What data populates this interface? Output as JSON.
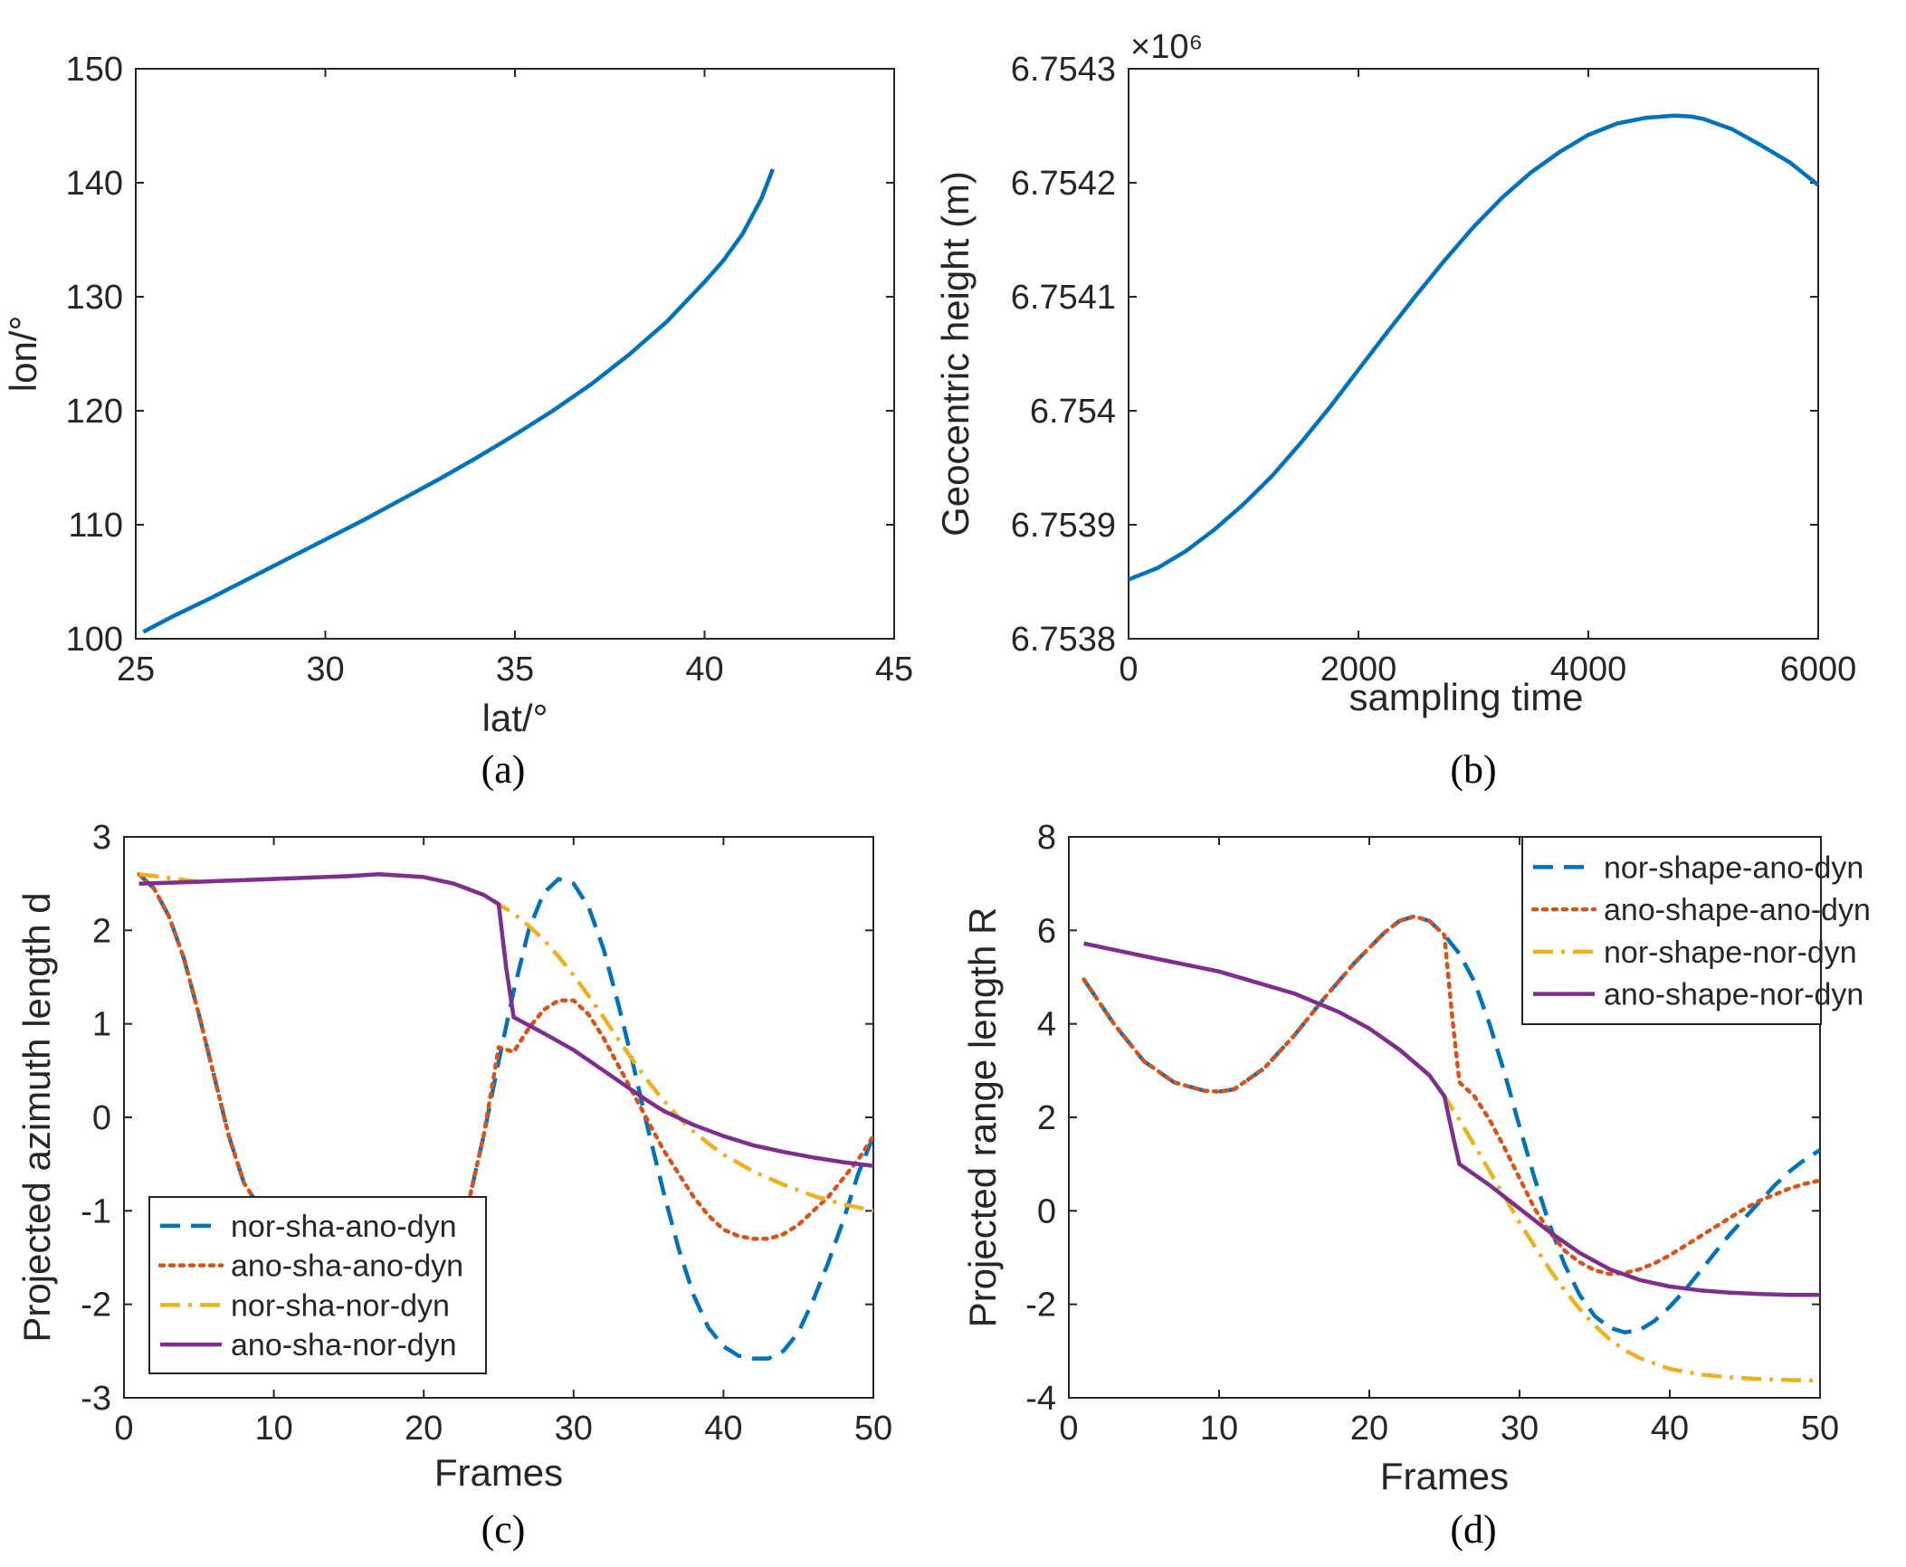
{
  "chart_data": [
    {
      "type": "line",
      "caption": "(a)",
      "xlabel": "lat/°",
      "ylabel": "lon/°",
      "xlim": [
        25,
        45
      ],
      "ylim": [
        100,
        150
      ],
      "xticks": [
        25,
        30,
        35,
        40,
        45
      ],
      "yticks": [
        100,
        110,
        120,
        130,
        140,
        150
      ],
      "series": [
        {
          "color": "#0072BD",
          "dash": "solid",
          "x": [
            25.2,
            26,
            27,
            28,
            29,
            30,
            31,
            32,
            33,
            34,
            35,
            36,
            37,
            38,
            39,
            40,
            40.5,
            41,
            41.5,
            41.8
          ],
          "y": [
            100.6,
            102.0,
            103.6,
            105.3,
            107.0,
            108.7,
            110.4,
            112.2,
            114.0,
            115.9,
            117.9,
            120.0,
            122.3,
            124.9,
            127.8,
            131.3,
            133.2,
            135.5,
            138.6,
            141.2
          ]
        }
      ]
    },
    {
      "type": "line",
      "caption": "(b)",
      "xlabel": "sampling time",
      "ylabel": "Geocentric height (m)",
      "exponent": "×10⁶",
      "xlim": [
        0,
        6000
      ],
      "ylim": [
        6.7538,
        6.7543
      ],
      "xticks": [
        0,
        2000,
        4000,
        6000
      ],
      "yticks": [
        6.7538,
        6.7539,
        6.754,
        6.7541,
        6.7542,
        6.7543
      ],
      "ytick_labels": [
        "6.7538",
        "6.7539",
        "6.754",
        "6.7541",
        "6.7542",
        "6.7543"
      ],
      "series": [
        {
          "color": "#0072BD",
          "dash": "solid",
          "x": [
            0,
            250,
            500,
            750,
            1000,
            1250,
            1500,
            1750,
            2000,
            2250,
            2500,
            2750,
            3000,
            3250,
            3500,
            3750,
            4000,
            4250,
            4500,
            4750,
            4900,
            5000,
            5250,
            5500,
            5750,
            6000
          ],
          "y": [
            6.753852,
            6.753862,
            6.753877,
            6.753896,
            6.753918,
            6.753943,
            6.753972,
            6.754003,
            6.754036,
            6.754069,
            6.754101,
            6.754132,
            6.754161,
            6.754187,
            6.754209,
            6.754227,
            6.754242,
            6.754252,
            6.754257,
            6.754259,
            6.754258,
            6.754256,
            6.754247,
            6.754233,
            6.754218,
            6.754198
          ]
        }
      ]
    },
    {
      "type": "line",
      "caption": "(c)",
      "xlabel": "Frames",
      "ylabel": "Projected azimuth length d",
      "xlim": [
        0,
        50
      ],
      "ylim": [
        -3,
        3
      ],
      "xticks": [
        0,
        10,
        20,
        30,
        40,
        50
      ],
      "yticks": [
        -3,
        -2,
        -1,
        0,
        1,
        2,
        3
      ],
      "legend_position": "bottom-left",
      "series": [
        {
          "name": "nor-sha-ano-dyn",
          "color": "#0072BD",
          "dash": "dashed",
          "x": [
            1,
            2,
            3,
            4,
            5,
            6,
            7,
            8,
            9,
            10,
            11,
            22,
            23,
            24,
            25,
            26,
            27,
            28,
            29,
            30,
            31,
            32,
            33,
            34,
            35,
            36,
            37,
            38,
            39,
            40,
            41,
            42,
            43,
            44,
            45,
            46,
            47,
            48,
            49,
            50
          ],
          "y": [
            2.6,
            2.45,
            2.15,
            1.7,
            1.1,
            0.45,
            -0.2,
            -0.7,
            -0.95,
            -1.0,
            -1.0,
            -1.0,
            -0.9,
            -0.2,
            0.6,
            1.35,
            2.0,
            2.4,
            2.55,
            2.5,
            2.25,
            1.8,
            1.2,
            0.55,
            -0.15,
            -0.8,
            -1.4,
            -1.9,
            -2.25,
            -2.45,
            -2.55,
            -2.58,
            -2.58,
            -2.5,
            -2.3,
            -1.95,
            -1.55,
            -1.1,
            -0.6,
            -0.2
          ]
        },
        {
          "name": "ano-sha-ano-dyn",
          "color": "#D95319",
          "dash": "dotted",
          "x": [
            1,
            2,
            3,
            4,
            5,
            6,
            7,
            8,
            9,
            10,
            11,
            22,
            23,
            24,
            25,
            26,
            27,
            28,
            29,
            30,
            31,
            32,
            33,
            34,
            35,
            36,
            37,
            38,
            39,
            40,
            41,
            42,
            43,
            44,
            45,
            46,
            47,
            48,
            49,
            50
          ],
          "y": [
            2.6,
            2.45,
            2.15,
            1.7,
            1.1,
            0.45,
            -0.2,
            -0.7,
            -0.95,
            -1.0,
            -1.0,
            -1.0,
            -0.9,
            -0.2,
            0.75,
            0.7,
            0.95,
            1.15,
            1.25,
            1.25,
            1.1,
            0.85,
            0.55,
            0.25,
            -0.05,
            -0.35,
            -0.6,
            -0.85,
            -1.05,
            -1.2,
            -1.27,
            -1.3,
            -1.3,
            -1.25,
            -1.15,
            -1.0,
            -0.85,
            -0.65,
            -0.45,
            -0.2
          ]
        },
        {
          "name": "nor-sha-nor-dyn",
          "color": "#EDB120",
          "dash": "dashdot",
          "x": [
            1,
            5,
            10,
            15,
            17,
            20,
            22,
            24,
            25,
            26,
            27,
            28,
            29,
            30,
            31,
            32,
            33,
            34,
            35,
            36,
            37,
            38,
            39,
            40,
            42,
            44,
            46,
            48,
            50
          ],
          "y": [
            2.6,
            2.52,
            2.55,
            2.58,
            2.6,
            2.57,
            2.5,
            2.38,
            2.28,
            2.18,
            2.05,
            1.9,
            1.72,
            1.52,
            1.3,
            1.07,
            0.83,
            0.6,
            0.38,
            0.18,
            0.0,
            -0.15,
            -0.28,
            -0.4,
            -0.58,
            -0.72,
            -0.84,
            -0.93,
            -1.0
          ]
        },
        {
          "name": "ano-sha-nor-dyn",
          "color": "#7E2F8E",
          "dash": "solid",
          "x": [
            1,
            5,
            10,
            15,
            17,
            20,
            22,
            24,
            25,
            25.5,
            26,
            28,
            30,
            32,
            34,
            35,
            36,
            38,
            40,
            42,
            44,
            46,
            48,
            50
          ],
          "y": [
            2.5,
            2.52,
            2.55,
            2.58,
            2.6,
            2.57,
            2.5,
            2.38,
            2.28,
            1.6,
            1.07,
            0.9,
            0.72,
            0.5,
            0.28,
            0.17,
            0.07,
            -0.08,
            -0.2,
            -0.3,
            -0.37,
            -0.43,
            -0.48,
            -0.52
          ]
        }
      ]
    },
    {
      "type": "line",
      "caption": "(d)",
      "xlabel": "Frames",
      "ylabel": "Projected range length R",
      "xlim": [
        0,
        50
      ],
      "ylim": [
        -4,
        8
      ],
      "xticks": [
        0,
        10,
        20,
        30,
        40,
        50
      ],
      "yticks": [
        -4,
        -2,
        0,
        2,
        4,
        6,
        8
      ],
      "legend_position": "top-right",
      "series": [
        {
          "name": "nor-shape-ano-dyn",
          "color": "#0072BD",
          "dash": "dashed",
          "x": [
            1,
            3,
            5,
            7,
            9,
            10,
            11,
            13,
            15,
            17,
            19,
            21,
            22,
            23,
            24,
            25,
            26,
            27,
            28,
            29,
            30,
            31,
            32,
            33,
            34,
            35,
            36,
            37,
            38,
            39,
            40,
            41,
            42,
            43,
            44,
            45,
            46,
            47,
            48,
            49,
            50
          ],
          "y": [
            4.95,
            4.0,
            3.2,
            2.75,
            2.57,
            2.55,
            2.6,
            3.05,
            3.75,
            4.55,
            5.3,
            5.95,
            6.2,
            6.3,
            6.2,
            5.9,
            5.5,
            4.9,
            4.0,
            2.95,
            1.8,
            0.7,
            -0.3,
            -1.15,
            -1.8,
            -2.25,
            -2.5,
            -2.6,
            -2.55,
            -2.35,
            -2.05,
            -1.7,
            -1.3,
            -0.9,
            -0.5,
            -0.15,
            0.2,
            0.55,
            0.85,
            1.1,
            1.3
          ]
        },
        {
          "name": "ano-shape-ano-dyn",
          "color": "#D95319",
          "dash": "dotted",
          "x": [
            1,
            3,
            5,
            7,
            9,
            10,
            11,
            13,
            15,
            17,
            19,
            21,
            22,
            23,
            24,
            25,
            25.5,
            26,
            27,
            28,
            29,
            30,
            31,
            32,
            33,
            34,
            35,
            36,
            37,
            38,
            39,
            40,
            41,
            42,
            43,
            44,
            45,
            46,
            47,
            48,
            49,
            50
          ],
          "y": [
            4.95,
            4.0,
            3.2,
            2.75,
            2.57,
            2.55,
            2.6,
            3.05,
            3.75,
            4.55,
            5.3,
            5.95,
            6.2,
            6.3,
            6.2,
            5.9,
            4.2,
            2.75,
            2.45,
            1.95,
            1.35,
            0.7,
            0.05,
            -0.45,
            -0.85,
            -1.1,
            -1.27,
            -1.35,
            -1.33,
            -1.25,
            -1.12,
            -0.95,
            -0.75,
            -0.55,
            -0.35,
            -0.15,
            0.05,
            0.22,
            0.35,
            0.48,
            0.58,
            0.65
          ]
        },
        {
          "name": "nor-shape-nor-dyn",
          "color": "#EDB120",
          "dash": "dashdot",
          "x": [
            1,
            5,
            10,
            15,
            18,
            20,
            22,
            24,
            25,
            26,
            27,
            28,
            29,
            30,
            31,
            32,
            33,
            34,
            35,
            36,
            37,
            38,
            40,
            42,
            44,
            46,
            48,
            50
          ],
          "y": [
            5.72,
            5.45,
            5.12,
            4.65,
            4.25,
            3.9,
            3.45,
            2.9,
            2.45,
            1.95,
            1.4,
            0.85,
            0.3,
            -0.25,
            -0.75,
            -1.25,
            -1.7,
            -2.1,
            -2.45,
            -2.75,
            -2.98,
            -3.15,
            -3.38,
            -3.5,
            -3.56,
            -3.6,
            -3.62,
            -3.63
          ]
        },
        {
          "name": "ano-shape-nor-dyn",
          "color": "#7E2F8E",
          "dash": "solid",
          "x": [
            1,
            5,
            10,
            15,
            18,
            20,
            22,
            24,
            25,
            25.5,
            26,
            28,
            30,
            32,
            34,
            36,
            38,
            40,
            42,
            44,
            46,
            48,
            50
          ],
          "y": [
            5.72,
            5.45,
            5.12,
            4.65,
            4.25,
            3.9,
            3.45,
            2.9,
            2.45,
            1.7,
            1.0,
            0.55,
            0.05,
            -0.45,
            -0.9,
            -1.25,
            -1.48,
            -1.62,
            -1.7,
            -1.75,
            -1.78,
            -1.8,
            -1.8
          ]
        }
      ]
    }
  ]
}
